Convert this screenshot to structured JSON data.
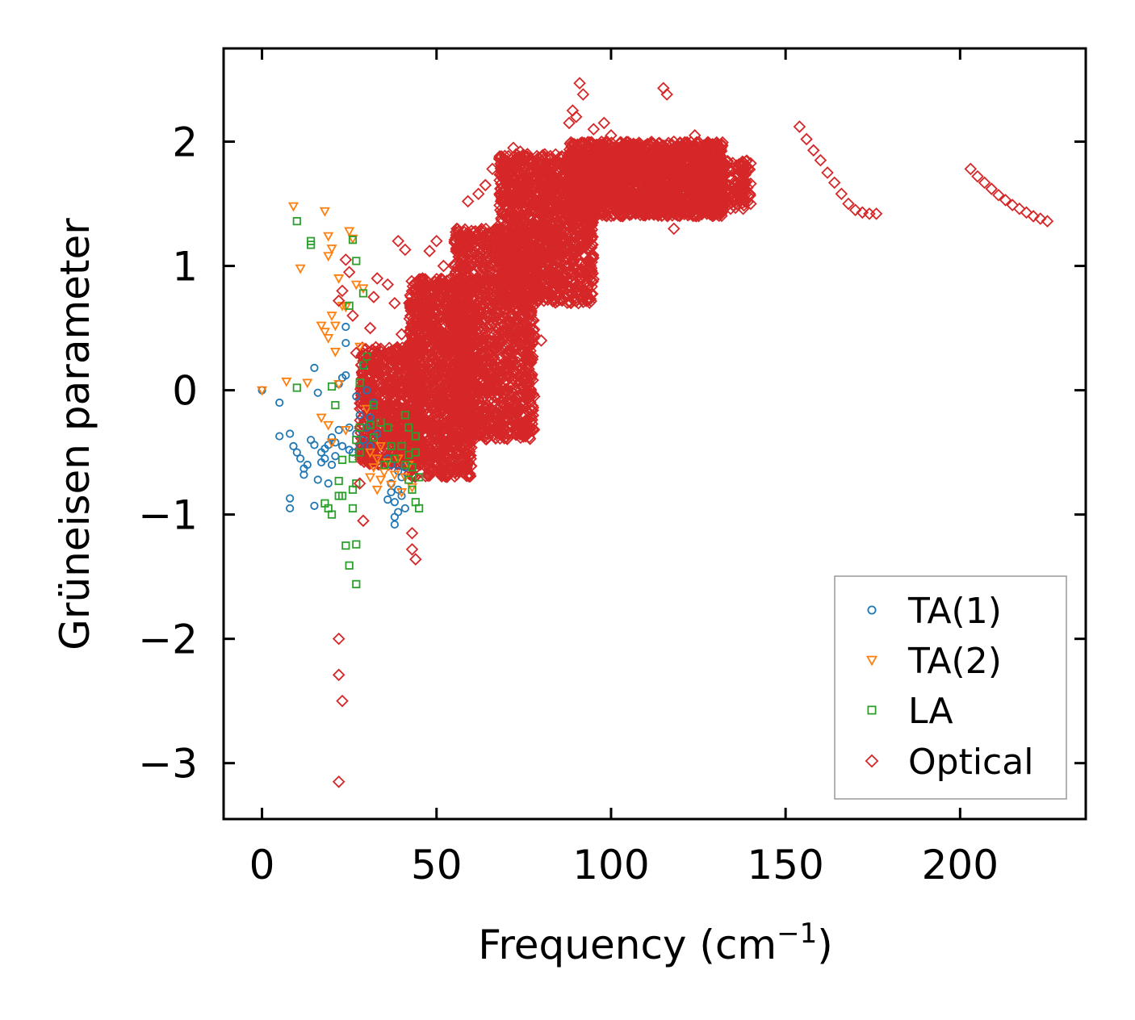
{
  "chart_data": {
    "type": "scatter",
    "title": "",
    "xlabel": "Frequency (cm",
    "xlabel_sup": "−1",
    "xlabel_close": ")",
    "ylabel": "Grüneisen parameter",
    "xlim": [
      -11,
      236
    ],
    "ylim": [
      -3.45,
      2.75
    ],
    "xticks": [
      0,
      50,
      100,
      150,
      200
    ],
    "yticks": [
      -3,
      -2,
      -1,
      0,
      1,
      2
    ],
    "xtick_labels": [
      "0",
      "50",
      "100",
      "150",
      "200"
    ],
    "ytick_labels": [
      "−3",
      "−2",
      "−1",
      "0",
      "1",
      "2"
    ],
    "legend_position": "bottom-right",
    "series": [
      {
        "name": "TA(1)",
        "marker": "circle",
        "color": "#1f77b4",
        "points": [
          [
            0,
            0.0
          ],
          [
            5,
            -0.1
          ],
          [
            5,
            -0.37
          ],
          [
            8,
            -0.35
          ],
          [
            8,
            -0.87
          ],
          [
            8,
            -0.95
          ],
          [
            9,
            -0.45
          ],
          [
            10,
            -0.5
          ],
          [
            11,
            -0.55
          ],
          [
            12,
            -0.63
          ],
          [
            12,
            -0.68
          ],
          [
            13,
            -0.6
          ],
          [
            14,
            -0.4
          ],
          [
            15,
            -0.44
          ],
          [
            15,
            -0.93
          ],
          [
            15,
            0.18
          ],
          [
            16,
            -0.72
          ],
          [
            16,
            -0.02
          ],
          [
            17,
            -0.5
          ],
          [
            17,
            -0.58
          ],
          [
            18,
            -0.47
          ],
          [
            18,
            -0.55
          ],
          [
            19,
            -0.44
          ],
          [
            19,
            -0.75
          ],
          [
            20,
            -0.38
          ],
          [
            20,
            -0.6
          ],
          [
            21,
            -0.42
          ],
          [
            21,
            -0.53
          ],
          [
            22,
            -0.32
          ],
          [
            22,
            0.05
          ],
          [
            23,
            0.1
          ],
          [
            23,
            -0.45
          ],
          [
            24,
            0.38
          ],
          [
            24,
            0.51
          ],
          [
            24,
            0.12
          ],
          [
            25,
            -0.3
          ],
          [
            25,
            -0.48
          ],
          [
            26,
            -0.5
          ],
          [
            27,
            -0.35
          ],
          [
            27,
            -0.05
          ],
          [
            28,
            -0.45
          ],
          [
            28,
            -0.2
          ],
          [
            29,
            0.2
          ],
          [
            29,
            -0.4
          ],
          [
            30,
            -0.3
          ],
          [
            30,
            0.0
          ],
          [
            31,
            -0.22
          ],
          [
            31,
            -0.45
          ],
          [
            32,
            -0.1
          ],
          [
            33,
            -0.35
          ],
          [
            36,
            -0.55
          ],
          [
            36,
            -0.88
          ],
          [
            37,
            -0.6
          ],
          [
            37,
            -0.75
          ],
          [
            38,
            -0.9
          ],
          [
            38,
            -1.02
          ],
          [
            38,
            -1.08
          ],
          [
            39,
            -0.65
          ],
          [
            39,
            -0.8
          ],
          [
            40,
            -0.7
          ],
          [
            40,
            -0.85
          ],
          [
            41,
            -0.62
          ],
          [
            41,
            -0.95
          ],
          [
            37,
            -0.82
          ],
          [
            39,
            -0.98
          ]
        ]
      },
      {
        "name": "TA(2)",
        "marker": "triangle-down",
        "color": "#ff7f0e",
        "points": [
          [
            0,
            0.0
          ],
          [
            7,
            0.07
          ],
          [
            9,
            1.48
          ],
          [
            11,
            0.98
          ],
          [
            13,
            0.06
          ],
          [
            17,
            0.52
          ],
          [
            17,
            -0.22
          ],
          [
            18,
            0.47
          ],
          [
            18,
            1.44
          ],
          [
            19,
            1.24
          ],
          [
            19,
            1.08
          ],
          [
            19,
            0.42
          ],
          [
            19,
            -0.28
          ],
          [
            20,
            1.14
          ],
          [
            20,
            0.6
          ],
          [
            20,
            -0.42
          ],
          [
            21,
            0.52
          ],
          [
            21,
            0.31
          ],
          [
            22,
            0.9
          ],
          [
            22,
            0.05
          ],
          [
            23,
            0.68
          ],
          [
            24,
            0.67
          ],
          [
            24,
            -0.32
          ],
          [
            25,
            1.28
          ],
          [
            26,
            1.22
          ],
          [
            27,
            0.85
          ],
          [
            28,
            0.35
          ],
          [
            29,
            0.82
          ],
          [
            30,
            -0.15
          ],
          [
            31,
            -0.5
          ],
          [
            31,
            -0.7
          ],
          [
            32,
            -0.62
          ],
          [
            33,
            -0.55
          ],
          [
            33,
            -0.8
          ],
          [
            34,
            -0.45
          ],
          [
            34,
            -0.72
          ],
          [
            35,
            -0.66
          ],
          [
            36,
            -0.58
          ],
          [
            37,
            -0.76
          ],
          [
            38,
            -0.68
          ],
          [
            39,
            -0.55
          ],
          [
            40,
            -0.82
          ],
          [
            41,
            -0.7
          ],
          [
            42,
            -0.6
          ],
          [
            43,
            -0.78
          ]
        ]
      },
      {
        "name": "LA",
        "marker": "square",
        "color": "#2ca02c",
        "points": [
          [
            10,
            1.36
          ],
          [
            10,
            0.02
          ],
          [
            14,
            1.2
          ],
          [
            14,
            1.17
          ],
          [
            18,
            -0.91
          ],
          [
            19,
            -0.95
          ],
          [
            20,
            -1.0
          ],
          [
            20,
            0.03
          ],
          [
            21,
            -0.12
          ],
          [
            22,
            -0.73
          ],
          [
            22,
            -0.85
          ],
          [
            23,
            -0.56
          ],
          [
            23,
            -0.85
          ],
          [
            24,
            -1.25
          ],
          [
            25,
            -1.41
          ],
          [
            25,
            0.68
          ],
          [
            26,
            -0.95
          ],
          [
            26,
            -0.8
          ],
          [
            26,
            -0.55
          ],
          [
            26,
            1.21
          ],
          [
            27,
            -1.56
          ],
          [
            27,
            -1.24
          ],
          [
            27,
            -0.75
          ],
          [
            27,
            -0.4
          ],
          [
            27,
            1.04
          ],
          [
            28,
            -0.3
          ],
          [
            28,
            -0.5
          ],
          [
            28,
            0.06
          ],
          [
            29,
            0.2
          ],
          [
            29,
            0.78
          ],
          [
            30,
            0.27
          ],
          [
            31,
            -0.28
          ],
          [
            32,
            -0.12
          ],
          [
            32,
            -0.38
          ],
          [
            34,
            -0.26
          ],
          [
            35,
            -0.6
          ],
          [
            36,
            -0.3
          ],
          [
            37,
            -0.45
          ],
          [
            38,
            -0.55
          ],
          [
            40,
            -0.45
          ],
          [
            41,
            -0.2
          ],
          [
            41,
            -0.6
          ],
          [
            42,
            -0.3
          ],
          [
            42,
            -0.52
          ],
          [
            43,
            -0.62
          ],
          [
            43,
            -0.8
          ],
          [
            44,
            -0.5
          ],
          [
            44,
            -0.9
          ],
          [
            45,
            -0.7
          ],
          [
            45,
            -0.95
          ],
          [
            44,
            -0.37
          ],
          [
            42,
            -0.72
          ]
        ]
      },
      {
        "name": "Optical",
        "marker": "diamond",
        "color": "#d62728",
        "points": [
          [
            22,
            -2.0
          ],
          [
            22,
            -2.29
          ],
          [
            23,
            -2.5
          ],
          [
            22,
            -3.15
          ],
          [
            23,
            0.8
          ],
          [
            24,
            1.05
          ],
          [
            22,
            0.72
          ],
          [
            25,
            0.95
          ],
          [
            26,
            0.6
          ],
          [
            27,
            0.3
          ],
          [
            28,
            -0.75
          ],
          [
            29,
            -1.05
          ],
          [
            30,
            0.25
          ],
          [
            31,
            0.5
          ],
          [
            32,
            0.75
          ],
          [
            33,
            0.9
          ],
          [
            34,
            -0.2
          ],
          [
            36,
            0.85
          ],
          [
            38,
            0.7
          ],
          [
            39,
            1.2
          ],
          [
            40,
            0.45
          ],
          [
            41,
            1.13
          ],
          [
            43,
            -1.15
          ],
          [
            43,
            -1.28
          ],
          [
            44,
            -1.36
          ],
          [
            46,
            0.9
          ],
          [
            48,
            1.12
          ],
          [
            50,
            1.2
          ],
          [
            52,
            1.0
          ],
          [
            55,
            0.6
          ],
          [
            57,
            1.05
          ],
          [
            59,
            1.52
          ],
          [
            60,
            1.24
          ],
          [
            62,
            1.58
          ],
          [
            64,
            1.65
          ],
          [
            66,
            1.78
          ],
          [
            68,
            1.86
          ],
          [
            70,
            1.72
          ],
          [
            72,
            1.95
          ],
          [
            74,
            1.92
          ],
          [
            76,
            0.3
          ],
          [
            78,
            -0.05
          ],
          [
            80,
            0.4
          ],
          [
            82,
            0.8
          ],
          [
            85,
            1.35
          ],
          [
            88,
            2.15
          ],
          [
            89,
            2.25
          ],
          [
            90,
            2.2
          ],
          [
            91,
            2.47
          ],
          [
            92,
            2.38
          ],
          [
            95,
            2.1
          ],
          [
            98,
            2.15
          ],
          [
            100,
            2.05
          ],
          [
            102,
            1.5
          ],
          [
            104,
            1.62
          ],
          [
            106,
            1.45
          ],
          [
            108,
            1.8
          ],
          [
            110,
            1.55
          ],
          [
            112,
            1.7
          ],
          [
            115,
            2.43
          ],
          [
            116,
            2.38
          ],
          [
            118,
            1.3
          ],
          [
            120,
            1.6
          ],
          [
            122,
            1.85
          ],
          [
            124,
            2.05
          ],
          [
            126,
            1.95
          ],
          [
            128,
            1.75
          ],
          [
            130,
            1.65
          ],
          [
            132,
            1.55
          ],
          [
            134,
            1.78
          ],
          [
            136,
            1.6
          ],
          [
            138,
            1.55
          ],
          [
            140,
            1.5
          ],
          [
            154,
            2.12
          ],
          [
            156,
            2.02
          ],
          [
            158,
            1.93
          ],
          [
            160,
            1.85
          ],
          [
            162,
            1.75
          ],
          [
            164,
            1.67
          ],
          [
            166,
            1.58
          ],
          [
            168,
            1.5
          ],
          [
            170,
            1.45
          ],
          [
            172,
            1.43
          ],
          [
            174,
            1.42
          ],
          [
            176,
            1.42
          ],
          [
            203,
            1.78
          ],
          [
            205,
            1.72
          ],
          [
            207,
            1.67
          ],
          [
            209,
            1.62
          ],
          [
            211,
            1.57
          ],
          [
            213,
            1.53
          ],
          [
            215,
            1.49
          ],
          [
            217,
            1.46
          ],
          [
            219,
            1.43
          ],
          [
            221,
            1.4
          ],
          [
            223,
            1.38
          ],
          [
            225,
            1.36
          ]
        ]
      }
    ],
    "dense_bands": [
      {
        "series": "Optical",
        "x_range": [
          28,
          45
        ],
        "y_range": [
          -0.6,
          0.35
        ],
        "n": 700
      },
      {
        "series": "Optical",
        "x_range": [
          42,
          60
        ],
        "y_range": [
          -0.7,
          0.9
        ],
        "n": 1300
      },
      {
        "series": "Optical",
        "x_range": [
          55,
          78
        ],
        "y_range": [
          -0.4,
          1.3
        ],
        "n": 1500
      },
      {
        "series": "Optical",
        "x_range": [
          68,
          95
        ],
        "y_range": [
          0.7,
          1.9
        ],
        "n": 1500
      },
      {
        "series": "Optical",
        "x_range": [
          88,
          132
        ],
        "y_range": [
          1.4,
          2.0
        ],
        "n": 1900
      },
      {
        "series": "Optical",
        "x_range": [
          126,
          140
        ],
        "y_range": [
          1.45,
          1.85
        ],
        "n": 220
      }
    ]
  }
}
